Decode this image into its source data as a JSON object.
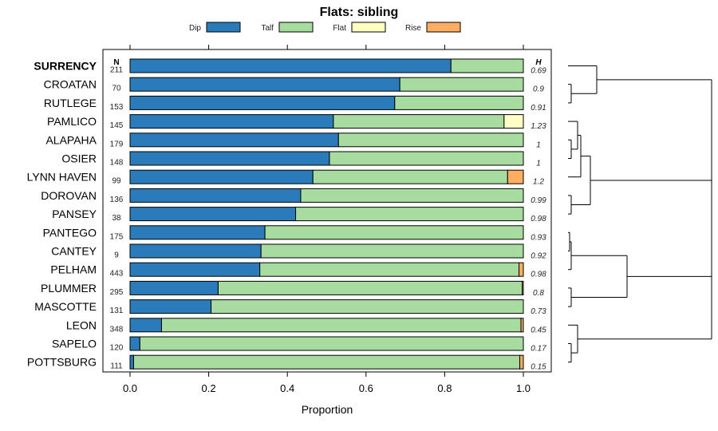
{
  "chart_data": {
    "type": "bar",
    "orientation": "horizontal",
    "stacked": true,
    "title": "Flats: sibling",
    "xlabel": "Proportion",
    "xlim": [
      0,
      1
    ],
    "xticks": [
      "0.0",
      "0.2",
      "0.4",
      "0.6",
      "0.8",
      "1.0"
    ],
    "xtick_values": [
      0,
      0.2,
      0.4,
      0.6,
      0.8,
      1.0
    ],
    "n_header": "N",
    "h_header": "H",
    "legend_position": "top",
    "series": [
      {
        "name": "Dip",
        "color": "#2b7bba"
      },
      {
        "name": "Talf",
        "color": "#a8dba0"
      },
      {
        "name": "Flat",
        "color": "#ffffc4"
      },
      {
        "name": "Rise",
        "color": "#fdae61"
      }
    ],
    "rows": [
      {
        "label": "SURRENCY",
        "bold": true,
        "n": "211",
        "h": "0.69",
        "values": [
          0.816,
          0.184,
          0,
          0
        ]
      },
      {
        "label": "CROATAN",
        "bold": false,
        "n": "70",
        "h": "0.9",
        "values": [
          0.686,
          0.314,
          0,
          0
        ]
      },
      {
        "label": "RUTLEGE",
        "bold": false,
        "n": "153",
        "h": "0.91",
        "values": [
          0.673,
          0.327,
          0,
          0
        ]
      },
      {
        "label": "PAMLICO",
        "bold": false,
        "n": "145",
        "h": "1.23",
        "values": [
          0.517,
          0.434,
          0.049,
          0
        ]
      },
      {
        "label": "ALAPAHA",
        "bold": false,
        "n": "179",
        "h": "1",
        "values": [
          0.53,
          0.47,
          0,
          0
        ]
      },
      {
        "label": "OSIER",
        "bold": false,
        "n": "148",
        "h": "1",
        "values": [
          0.507,
          0.493,
          0,
          0
        ]
      },
      {
        "label": "LYNN HAVEN",
        "bold": false,
        "n": "99",
        "h": "1.2",
        "values": [
          0.465,
          0.495,
          0,
          0.04
        ]
      },
      {
        "label": "DOROVAN",
        "bold": false,
        "n": "136",
        "h": "0.99",
        "values": [
          0.434,
          0.566,
          0,
          0
        ]
      },
      {
        "label": "PANSEY",
        "bold": false,
        "n": "38",
        "h": "0.98",
        "values": [
          0.421,
          0.579,
          0,
          0
        ]
      },
      {
        "label": "PANTEGO",
        "bold": false,
        "n": "175",
        "h": "0.93",
        "values": [
          0.343,
          0.657,
          0,
          0
        ]
      },
      {
        "label": "CANTEY",
        "bold": false,
        "n": "9",
        "h": "0.92",
        "values": [
          0.333,
          0.667,
          0,
          0
        ]
      },
      {
        "label": "PELHAM",
        "bold": false,
        "n": "443",
        "h": "0.98",
        "values": [
          0.33,
          0.659,
          0,
          0.011
        ]
      },
      {
        "label": "PLUMMER",
        "bold": false,
        "n": "295",
        "h": "0.8",
        "values": [
          0.224,
          0.773,
          0,
          0.003
        ]
      },
      {
        "label": "MASCOTTE",
        "bold": false,
        "n": "131",
        "h": "0.73",
        "values": [
          0.206,
          0.794,
          0,
          0
        ]
      },
      {
        "label": "LEON",
        "bold": false,
        "n": "348",
        "h": "0.45",
        "values": [
          0.08,
          0.914,
          0,
          0.006
        ]
      },
      {
        "label": "SAPELO",
        "bold": false,
        "n": "120",
        "h": "0.17",
        "values": [
          0.025,
          0.975,
          0,
          0
        ]
      },
      {
        "label": "POTTSBURG",
        "bold": false,
        "n": "111",
        "h": "0.15",
        "values": [
          0.009,
          0.982,
          0,
          0.009
        ]
      }
    ]
  }
}
